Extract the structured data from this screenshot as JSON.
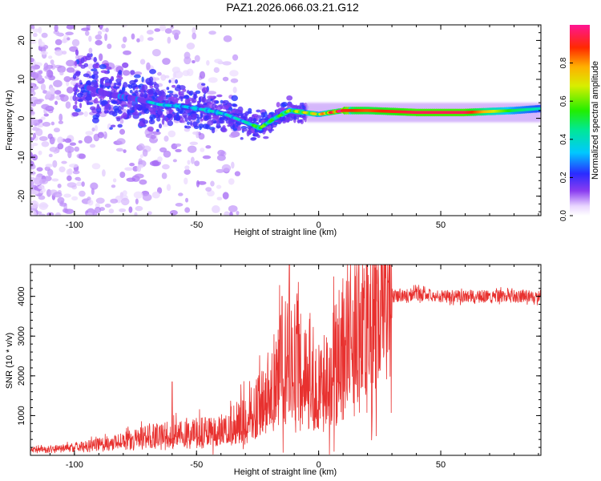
{
  "figure_title": "PAZ1.2026.066.03.21.G12",
  "chart_data": [
    {
      "type": "heatmap",
      "title": "PAZ1.2026.066.03.21.G12",
      "xlabel": "Height of straight line (km)",
      "ylabel": "Frequency (Hz)",
      "xlim": [
        -118,
        91
      ],
      "ylim": [
        -25,
        24
      ],
      "xticks": [
        -100,
        -50,
        0,
        50
      ],
      "yticks": [
        -20,
        -10,
        0,
        10,
        20
      ],
      "xtick_labels": [
        "-100",
        "-50",
        "0",
        "50"
      ],
      "ytick_labels": [
        "-20",
        "-10",
        "0",
        "10",
        "20"
      ],
      "ridge": {
        "x": [
          -95,
          -85,
          -75,
          -65,
          -55,
          -45,
          -38,
          -30,
          -24,
          -18,
          -12,
          -6,
          0,
          10,
          20,
          40,
          60,
          80,
          91
        ],
        "freq": [
          8,
          6,
          5,
          3.5,
          3,
          2,
          1,
          -1,
          -2.5,
          0,
          2,
          1.5,
          1,
          2,
          2,
          1.5,
          1.5,
          2,
          2.5
        ],
        "amplitude": [
          0.25,
          0.3,
          0.3,
          0.35,
          0.3,
          0.35,
          0.35,
          0.35,
          0.55,
          0.45,
          0.55,
          0.6,
          0.65,
          0.9,
          0.85,
          0.95,
          0.95,
          0.5,
          0.4
        ]
      },
      "colorbar": {
        "label": "Normalized spectral amplitude",
        "range": [
          0,
          1
        ],
        "ticks": [
          0.0,
          0.2,
          0.4,
          0.6,
          0.8
        ],
        "tick_labels": [
          "0.0",
          "0.2",
          "0.4",
          "0.6",
          "0.8"
        ]
      }
    },
    {
      "type": "line",
      "xlabel": "Height of straight line (km)",
      "ylabel": "SNR (10 * v/v)",
      "xlim": [
        -118,
        91
      ],
      "ylim": [
        0,
        4800
      ],
      "xticks": [
        -100,
        -50,
        0,
        50
      ],
      "yticks": [
        1000,
        2000,
        3000,
        4000
      ],
      "xtick_labels": [
        "-100",
        "-50",
        "0",
        "50"
      ],
      "ytick_labels": [
        "1000",
        "2000",
        "3000",
        "4000"
      ],
      "series": [
        {
          "name": "SNR",
          "color": "#e8312f",
          "x": [
            -118,
            -100,
            -90,
            -80,
            -70,
            -60,
            -50,
            -40,
            -30,
            -20,
            -15,
            -12,
            -8,
            -5,
            0,
            5,
            10,
            15,
            20,
            25,
            30,
            40,
            50,
            60,
            70,
            80,
            91
          ],
          "y": [
            150,
            220,
            300,
            380,
            500,
            560,
            580,
            620,
            900,
            1500,
            2200,
            2600,
            2500,
            2300,
            1700,
            2200,
            2700,
            3100,
            3500,
            3850,
            4000,
            4050,
            4000,
            4000,
            4000,
            4000,
            4000
          ],
          "spikes": [
            {
              "x": -60,
              "y": 1850
            },
            {
              "x": -15,
              "y": 4000
            },
            {
              "x": -12,
              "y": 4800
            },
            {
              "x": -8,
              "y": 3300
            }
          ]
        }
      ]
    }
  ]
}
